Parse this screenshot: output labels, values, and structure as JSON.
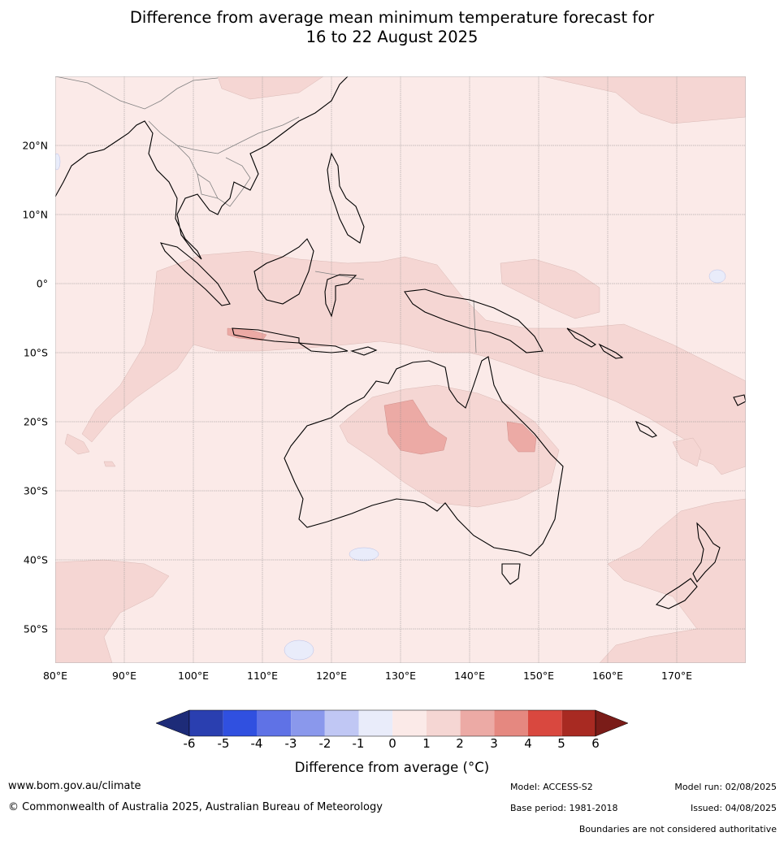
{
  "title": {
    "line1": "Difference from average mean minimum temperature forecast for",
    "line2": "16 to 22 August 2025"
  },
  "map": {
    "lat_labels": [
      "20°N",
      "10°N",
      "0°",
      "10°S",
      "20°S",
      "30°S",
      "40°S",
      "50°S"
    ],
    "lon_labels": [
      "80°E",
      "90°E",
      "100°E",
      "110°E",
      "120°E",
      "130°E",
      "140°E",
      "150°E",
      "160°E",
      "170°E"
    ],
    "colors": {
      "zero_to_one": "#fbeae8",
      "one_to_two": "#f5d6d3",
      "two_to_three": "#ecaaa5",
      "minus_one_to_zero": "#e9ecfa",
      "coastline": "#000000",
      "borders": "#808080",
      "gridlines": "#8c8c8c"
    }
  },
  "colorbar": {
    "ticks": [
      "-6",
      "-5",
      "-4",
      "-3",
      "-2",
      "-1",
      "0",
      "1",
      "2",
      "3",
      "4",
      "5",
      "6"
    ],
    "colors": [
      "#1d2b78",
      "#2a3fb0",
      "#3050e0",
      "#5f72e6",
      "#8a98ec",
      "#c0c7f4",
      "#e9ecfa",
      "#fbeae8",
      "#f5d6d3",
      "#ecaaa5",
      "#e58880",
      "#d9483f",
      "#a82a22",
      "#7a1c18"
    ],
    "label": "Difference from average (°C)"
  },
  "footer": {
    "website": "www.bom.gov.au/climate",
    "copyright": "© Commonwealth of Australia 2025, Australian Bureau of Meteorology",
    "model": "Model: ACCESS-S2",
    "base_period": "Base period: 1981-2018",
    "model_run": "Model run: 02/08/2025",
    "issued": "Issued: 04/08/2025",
    "disclaimer": "Boundaries are not considered authoritative"
  }
}
